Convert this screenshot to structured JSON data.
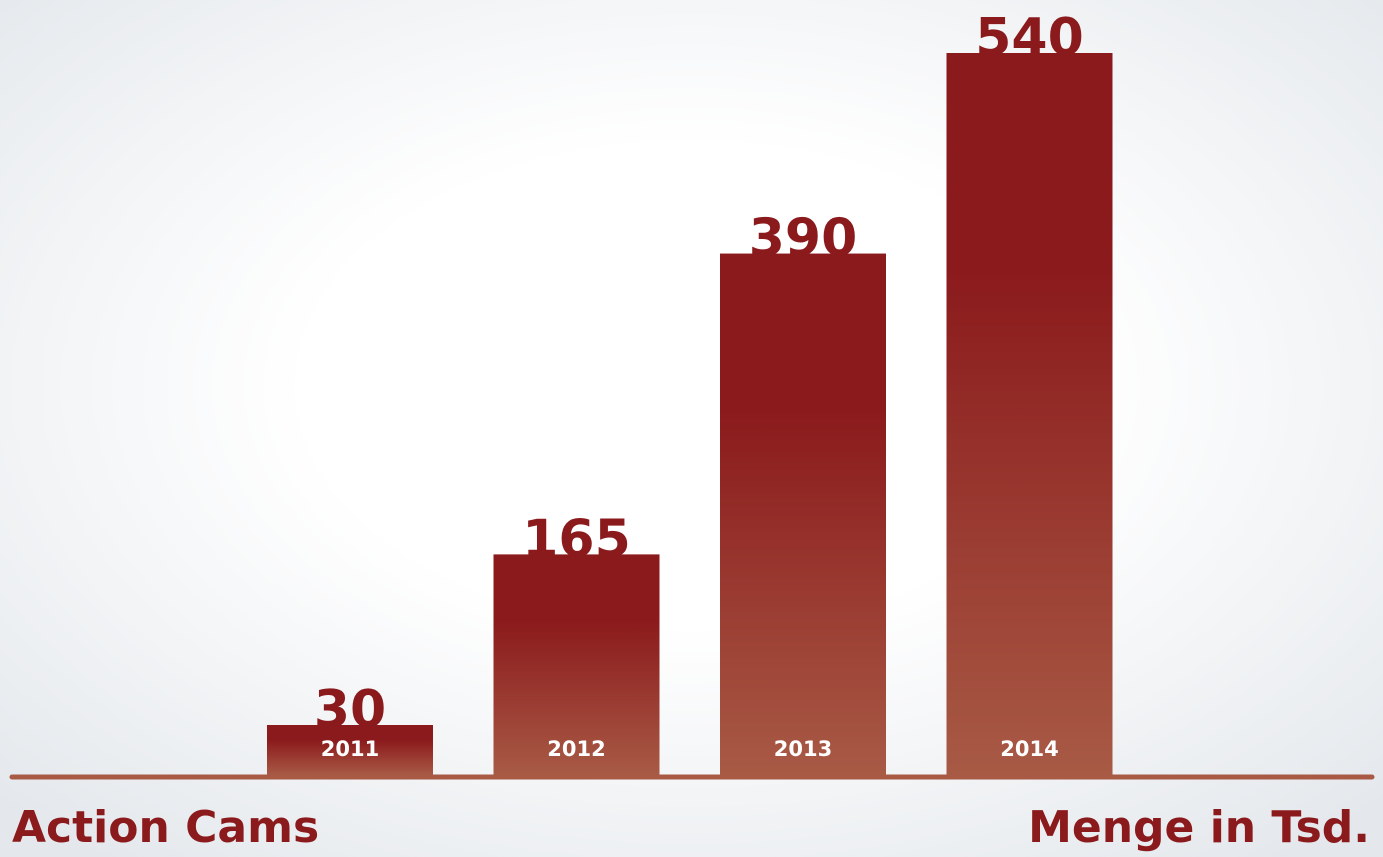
{
  "chart_data": {
    "type": "bar",
    "title": "Action Cams",
    "y_label": "Menge in Tsd.",
    "categories": [
      "2011",
      "2012",
      "2013",
      "2014"
    ],
    "values": [
      30,
      165,
      390,
      540
    ],
    "color": "#8b1a1c",
    "color_bottom": "#a85a45"
  }
}
